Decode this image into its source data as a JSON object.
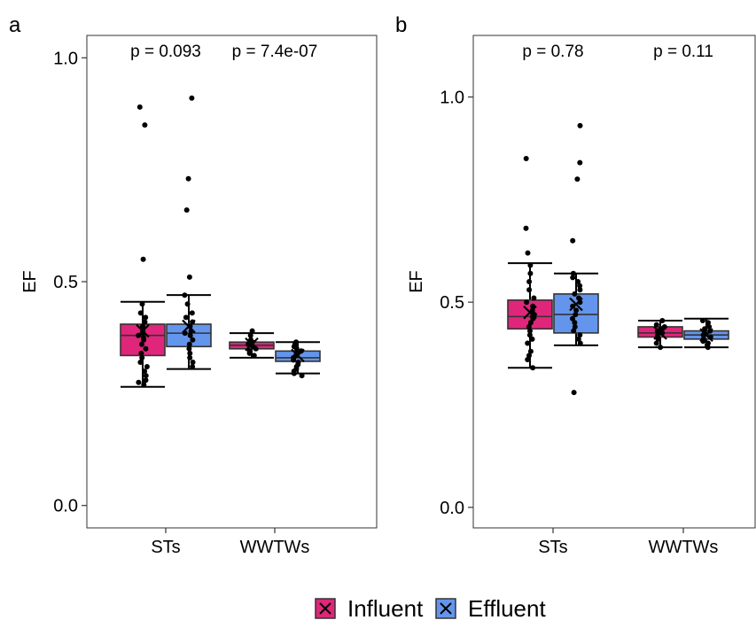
{
  "colors": {
    "influent": "#e0267a",
    "effluent": "#6495ed",
    "outline": "#333333",
    "point": "#000000"
  },
  "legend": {
    "items": [
      {
        "label": "Influent",
        "color": "#e0267a"
      },
      {
        "label": "Effluent",
        "color": "#6495ed"
      }
    ]
  },
  "chart_data": [
    {
      "type": "boxplot",
      "panel": "a",
      "ylabel": "EF",
      "ylim": [
        -0.05,
        1.05
      ],
      "yticks": [
        0.0,
        0.5,
        1.0
      ],
      "ytick_labels": [
        "0.0",
        "0.5",
        "1.0"
      ],
      "categories": [
        "STs",
        "WWTWs"
      ],
      "p_values": [
        "p = 0.093",
        "p = 7.4e-07"
      ],
      "series": [
        {
          "name": "Influent",
          "boxes": [
            {
              "category": "STs",
              "whisker_low": 0.265,
              "q1": 0.335,
              "median": 0.38,
              "q3": 0.405,
              "whisker_high": 0.455,
              "mean": 0.39,
              "points": [
                0.89,
                0.85,
                0.55,
                0.45,
                0.43,
                0.42,
                0.41,
                0.4,
                0.39,
                0.385,
                0.38,
                0.375,
                0.37,
                0.36,
                0.35,
                0.34,
                0.33,
                0.32,
                0.31,
                0.3,
                0.29,
                0.28,
                0.275,
                0.27
              ]
            },
            {
              "category": "WWTWs",
              "whisker_low": 0.33,
              "q1": 0.35,
              "median": 0.358,
              "q3": 0.365,
              "whisker_high": 0.385,
              "mean": 0.36,
              "points": [
                0.39,
                0.38,
                0.37,
                0.365,
                0.36,
                0.355,
                0.35,
                0.345,
                0.34,
                0.335
              ]
            }
          ]
        },
        {
          "name": "Effluent",
          "boxes": [
            {
              "category": "STs",
              "whisker_low": 0.305,
              "q1": 0.355,
              "median": 0.385,
              "q3": 0.405,
              "whisker_high": 0.47,
              "mean": 0.4,
              "points": [
                0.91,
                0.73,
                0.66,
                0.51,
                0.47,
                0.45,
                0.43,
                0.42,
                0.41,
                0.4,
                0.39,
                0.385,
                0.38,
                0.37,
                0.36,
                0.35,
                0.34,
                0.33,
                0.32,
                0.31
              ]
            },
            {
              "category": "WWTWs",
              "whisker_low": 0.295,
              "q1": 0.322,
              "median": 0.33,
              "q3": 0.345,
              "whisker_high": 0.365,
              "mean": 0.335,
              "points": [
                0.365,
                0.36,
                0.355,
                0.35,
                0.345,
                0.34,
                0.335,
                0.33,
                0.325,
                0.32,
                0.315,
                0.31,
                0.305,
                0.3,
                0.295,
                0.29
              ]
            }
          ]
        }
      ]
    },
    {
      "type": "boxplot",
      "panel": "b",
      "ylabel": "EF",
      "ylim": [
        -0.05,
        1.15
      ],
      "yticks": [
        0.0,
        0.5,
        1.0
      ],
      "ytick_labels": [
        "0.0",
        "0.5",
        "1.0"
      ],
      "categories": [
        "STs",
        "WWTWs"
      ],
      "p_values": [
        "p = 0.78",
        "p = 0.11"
      ],
      "series": [
        {
          "name": "Influent",
          "boxes": [
            {
              "category": "STs",
              "whisker_low": 0.34,
              "q1": 0.435,
              "median": 0.465,
              "q3": 0.505,
              "whisker_high": 0.595,
              "mean": 0.475,
              "points": [
                0.85,
                0.68,
                0.62,
                0.59,
                0.57,
                0.55,
                0.53,
                0.51,
                0.5,
                0.49,
                0.48,
                0.47,
                0.465,
                0.46,
                0.45,
                0.44,
                0.43,
                0.42,
                0.41,
                0.4,
                0.38,
                0.37,
                0.36,
                0.34
              ]
            },
            {
              "category": "WWTWs",
              "whisker_low": 0.39,
              "q1": 0.415,
              "median": 0.425,
              "q3": 0.44,
              "whisker_high": 0.455,
              "mean": 0.425,
              "points": [
                0.455,
                0.445,
                0.44,
                0.435,
                0.43,
                0.425,
                0.42,
                0.415,
                0.41,
                0.4,
                0.39
              ]
            }
          ]
        },
        {
          "name": "Effluent",
          "boxes": [
            {
              "category": "STs",
              "whisker_low": 0.395,
              "q1": 0.425,
              "median": 0.47,
              "q3": 0.52,
              "whisker_high": 0.57,
              "mean": 0.495,
              "points": [
                0.93,
                0.84,
                0.8,
                0.65,
                0.57,
                0.56,
                0.55,
                0.54,
                0.53,
                0.52,
                0.51,
                0.5,
                0.49,
                0.48,
                0.47,
                0.46,
                0.45,
                0.44,
                0.43,
                0.42,
                0.41,
                0.4,
                0.28
              ]
            },
            {
              "category": "WWTWs",
              "whisker_low": 0.39,
              "q1": 0.41,
              "median": 0.42,
              "q3": 0.43,
              "whisker_high": 0.46,
              "mean": 0.42,
              "points": [
                0.455,
                0.45,
                0.44,
                0.435,
                0.43,
                0.425,
                0.42,
                0.415,
                0.41,
                0.405,
                0.4,
                0.395,
                0.39
              ]
            }
          ]
        }
      ]
    }
  ]
}
